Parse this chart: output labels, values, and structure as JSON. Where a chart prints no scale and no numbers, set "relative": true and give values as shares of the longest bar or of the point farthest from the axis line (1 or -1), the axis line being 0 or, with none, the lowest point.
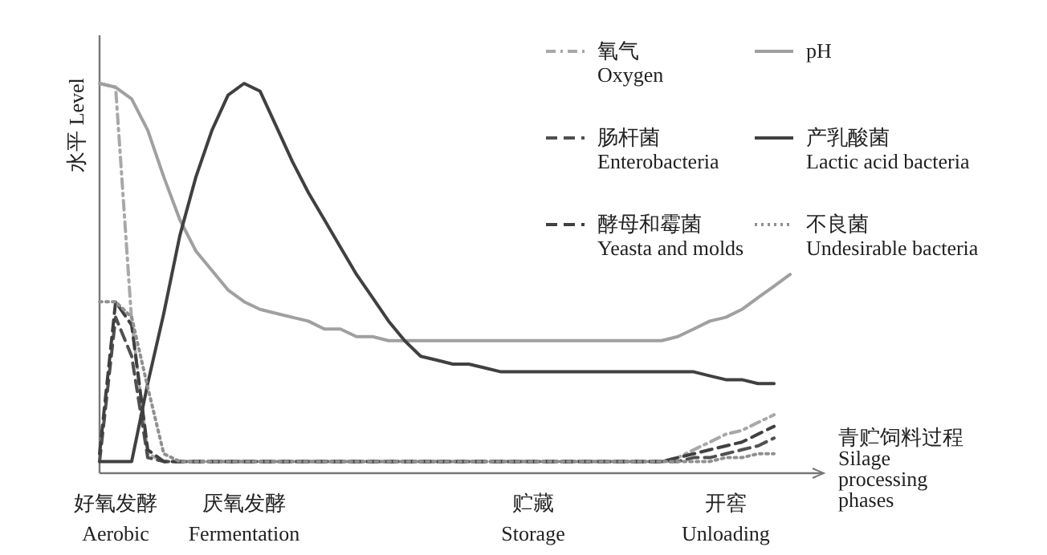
{
  "chart_data": {
    "type": "line",
    "relative": true,
    "ylabel": "水平 Level",
    "xlabel": "青贮饲料过程\nSilage\nprocessing\nphases",
    "legend": "top right",
    "grid": false,
    "categories": [
      null,
      "好氧发酵\nAerobic",
      null,
      null,
      null,
      null,
      null,
      null,
      null,
      "厌氧发酵\nFermentation",
      null,
      null,
      null,
      null,
      null,
      null,
      null,
      null,
      null,
      null,
      null,
      null,
      null,
      null,
      null,
      null,
      null,
      "贮藏\nStorage",
      null,
      null,
      null,
      null,
      null,
      null,
      null,
      null,
      null,
      null,
      null,
      "开窖\nUnloading",
      null,
      null,
      null,
      null,
      null,
      null
    ],
    "series": [
      {
        "name": "氧气\nOxygen",
        "color": "#a8a8a8",
        "line_style": "dashdot",
        "values": [
          1.0,
          0.99,
          0.39,
          0.05,
          0.03,
          0.03,
          0.03,
          0.03,
          0.03,
          0.03,
          0.03,
          0.03,
          0.03,
          0.03,
          0.03,
          0.03,
          0.03,
          0.03,
          0.03,
          0.03,
          0.03,
          0.03,
          0.03,
          0.03,
          0.03,
          0.03,
          0.03,
          0.03,
          0.03,
          0.03,
          0.03,
          0.03,
          0.03,
          0.03,
          0.03,
          0.03,
          0.04,
          0.06,
          0.08,
          0.1,
          0.11,
          0.13,
          0.15,
          null,
          null,
          null
        ]
      },
      {
        "name": "pH",
        "color": "#a0a0a0",
        "line_style": "solid",
        "values": [
          1.0,
          0.99,
          0.96,
          0.88,
          0.76,
          0.65,
          0.57,
          0.52,
          0.47,
          0.44,
          0.42,
          0.41,
          0.4,
          0.39,
          0.37,
          0.37,
          0.35,
          0.35,
          0.34,
          0.34,
          0.34,
          0.34,
          0.34,
          0.34,
          0.34,
          0.34,
          0.34,
          0.34,
          0.34,
          0.34,
          0.34,
          0.34,
          0.34,
          0.34,
          0.34,
          0.34,
          0.35,
          0.37,
          0.39,
          0.4,
          0.42,
          0.45,
          0.48,
          0.51,
          null,
          null
        ]
      },
      {
        "name": "肠杆菌\nEnterobacteria",
        "color": "#505050",
        "line_style": "dashed",
        "values": [
          0.03,
          0.4,
          0.3,
          0.04,
          0.03,
          0.03,
          0.03,
          0.03,
          0.03,
          0.03,
          0.03,
          0.03,
          0.03,
          0.03,
          0.03,
          0.03,
          0.03,
          0.03,
          0.03,
          0.03,
          0.03,
          0.03,
          0.03,
          0.03,
          0.03,
          0.03,
          0.03,
          0.03,
          0.03,
          0.03,
          0.03,
          0.03,
          0.03,
          0.03,
          0.03,
          0.03,
          0.03,
          0.04,
          0.04,
          0.05,
          0.06,
          0.07,
          0.09,
          null,
          null,
          null
        ]
      },
      {
        "name": "产乳酸菌\nLactic acid bacteria",
        "color": "#404040",
        "line_style": "solid",
        "values": [
          0.03,
          0.03,
          0.03,
          0.23,
          0.41,
          0.61,
          0.76,
          0.88,
          0.97,
          1.0,
          0.98,
          0.89,
          0.8,
          0.72,
          0.65,
          0.58,
          0.51,
          0.45,
          0.39,
          0.34,
          0.3,
          0.29,
          0.28,
          0.28,
          0.27,
          0.26,
          0.26,
          0.26,
          0.26,
          0.26,
          0.26,
          0.26,
          0.26,
          0.26,
          0.26,
          0.26,
          0.26,
          0.26,
          0.25,
          0.24,
          0.24,
          0.23,
          0.23,
          null,
          null,
          null
        ]
      },
      {
        "name": "酵母和霉菌\nYeasta and molds",
        "color": "#404040",
        "line_style": "dashed",
        "values": [
          0.05,
          0.44,
          0.38,
          0.06,
          0.03,
          0.03,
          0.03,
          0.03,
          0.03,
          0.03,
          0.03,
          0.03,
          0.03,
          0.03,
          0.03,
          0.03,
          0.03,
          0.03,
          0.03,
          0.03,
          0.03,
          0.03,
          0.03,
          0.03,
          0.03,
          0.03,
          0.03,
          0.03,
          0.03,
          0.03,
          0.03,
          0.03,
          0.03,
          0.03,
          0.03,
          0.03,
          0.04,
          0.05,
          0.06,
          0.07,
          0.08,
          0.1,
          0.12,
          null,
          null,
          null
        ]
      },
      {
        "name": "不良菌\nUndesirable bacteria",
        "color": "#909090",
        "line_style": "dotted",
        "values": [
          0.44,
          0.44,
          0.4,
          0.22,
          0.05,
          0.03,
          0.03,
          0.03,
          0.03,
          0.03,
          0.03,
          0.03,
          0.03,
          0.03,
          0.03,
          0.03,
          0.03,
          0.03,
          0.03,
          0.03,
          0.03,
          0.03,
          0.03,
          0.03,
          0.03,
          0.03,
          0.03,
          0.03,
          0.03,
          0.03,
          0.03,
          0.03,
          0.03,
          0.03,
          0.03,
          0.03,
          0.03,
          0.03,
          0.03,
          0.04,
          0.04,
          0.05,
          0.05,
          null,
          null,
          null
        ]
      }
    ]
  }
}
